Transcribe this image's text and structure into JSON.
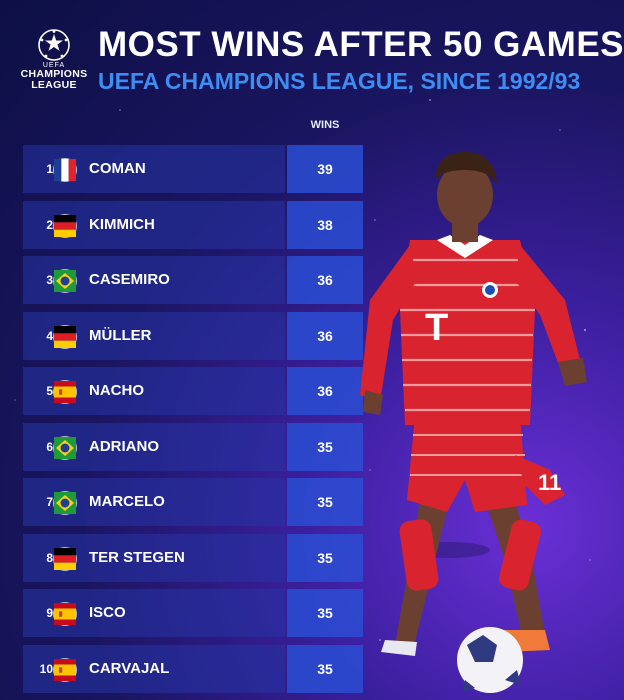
{
  "header": {
    "logo": {
      "top_text": "UEFA",
      "line1": "CHAMPIONS",
      "line2": "LEAGUE"
    },
    "title": "MOST WINS AFTER 50 GAMES",
    "subtitle": "UEFA CHAMPIONS LEAGUE, SINCE 1992/93"
  },
  "table": {
    "column_header": "WINS",
    "rows": [
      {
        "rank": "1",
        "name": "COMAN",
        "flag": "france-flag-icon",
        "wins": "39"
      },
      {
        "rank": "2",
        "name": "KIMMICH",
        "flag": "germany-flag-icon",
        "wins": "38"
      },
      {
        "rank": "3",
        "name": "CASEMIRO",
        "flag": "brazil-flag-icon",
        "wins": "36"
      },
      {
        "rank": "4",
        "name": "MÜLLER",
        "flag": "germany-flag-icon",
        "wins": "36"
      },
      {
        "rank": "5",
        "name": "NACHO",
        "flag": "spain-flag-icon",
        "wins": "36"
      },
      {
        "rank": "6",
        "name": "ADRIANO",
        "flag": "brazil-flag-icon",
        "wins": "35"
      },
      {
        "rank": "7",
        "name": "MARCELO",
        "flag": "brazil-flag-icon",
        "wins": "35"
      },
      {
        "rank": "8",
        "name": "TER STEGEN",
        "flag": "germany-flag-icon",
        "wins": "35"
      },
      {
        "rank": "9",
        "name": "ISCO",
        "flag": "spain-flag-icon",
        "wins": "35"
      },
      {
        "rank": "10",
        "name": "CARVAJAL",
        "flag": "spain-flag-icon",
        "wins": "35"
      }
    ]
  },
  "player_photo": {
    "icon": "footballer-in-red-kit-icon",
    "shirt_number": "11"
  },
  "colors": {
    "accent_blue": "#3d8df2",
    "kit_red": "#d9232e"
  }
}
